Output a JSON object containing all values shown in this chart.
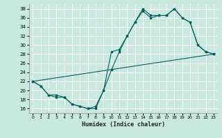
{
  "xlabel": "Humidex (Indice chaleur)",
  "bg_color": "#c8e8e0",
  "grid_color": "#ffffff",
  "line_color": "#006060",
  "xlim": [
    -0.5,
    23.5
  ],
  "ylim": [
    15,
    39
  ],
  "yticks": [
    16,
    18,
    20,
    22,
    24,
    26,
    28,
    30,
    32,
    34,
    36,
    38
  ],
  "xticks": [
    0,
    1,
    2,
    3,
    4,
    5,
    6,
    7,
    8,
    9,
    10,
    11,
    12,
    13,
    14,
    15,
    16,
    17,
    18,
    19,
    20,
    21,
    22,
    23
  ],
  "line1_x": [
    0,
    1,
    2,
    3,
    4,
    5,
    6,
    7,
    8,
    9,
    10,
    11,
    12,
    13,
    14,
    15,
    16,
    17,
    18,
    19,
    20,
    21,
    22,
    23
  ],
  "line1_y": [
    22,
    21,
    19,
    19,
    18.5,
    17,
    16.5,
    16,
    16.5,
    20,
    28.5,
    29,
    32,
    35,
    38,
    36.5,
    36.5,
    36.5,
    38,
    36,
    35,
    30,
    28.5,
    28
  ],
  "line2_x": [
    0,
    1,
    2,
    3,
    4,
    5,
    6,
    7,
    8,
    9,
    10,
    11,
    12,
    13,
    14,
    15,
    16,
    17,
    18,
    19,
    20,
    21,
    22,
    23
  ],
  "line2_y": [
    22,
    21,
    19,
    18.5,
    18.5,
    17,
    16.5,
    16,
    16,
    20,
    24.5,
    28.5,
    32,
    35,
    37.5,
    36,
    36.5,
    36.5,
    38,
    36,
    35,
    30,
    28.5,
    28
  ],
  "line3_x": [
    0,
    23
  ],
  "line3_y": [
    22,
    28
  ]
}
